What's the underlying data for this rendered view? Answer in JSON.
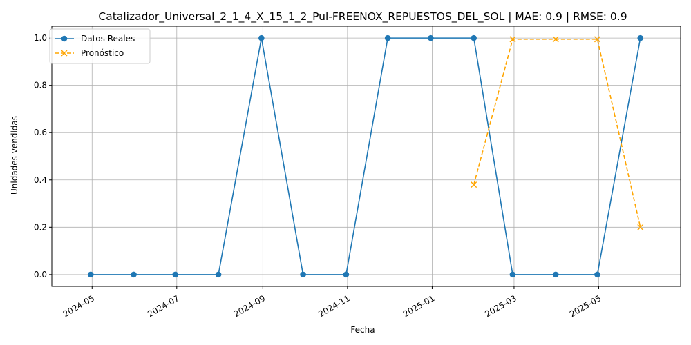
{
  "chart_data": {
    "type": "line",
    "title": "Catalizador_Universal_2_1_4_X_15_1_2_Pul-FREENOX_REPUESTOS_DEL_SOL | MAE: 0.9 | RMSE: 0.9",
    "xlabel": "Fecha",
    "ylabel": "Unidades vendidas",
    "ylim": [
      -0.05,
      1.05
    ],
    "xlim": [
      "2024-04-02",
      "2025-06-29"
    ],
    "grid": true,
    "legend_position": "top-left",
    "x_ticks": [
      "2024-05",
      "2024-07",
      "2024-09",
      "2024-11",
      "2025-01",
      "2025-03",
      "2025-05"
    ],
    "y_ticks": [
      "0.0",
      "0.2",
      "0.4",
      "0.6",
      "0.8",
      "1.0"
    ],
    "y_tick_values": [
      0.0,
      0.2,
      0.4,
      0.6,
      0.8,
      1.0
    ],
    "series": [
      {
        "name": "Datos Reales",
        "color": "#1f77b4",
        "style": "solid",
        "marker": "circle",
        "x": [
          "2024-04-30",
          "2024-05-31",
          "2024-06-30",
          "2024-07-31",
          "2024-08-31",
          "2024-09-30",
          "2024-10-31",
          "2024-11-30",
          "2024-12-31",
          "2025-01-31",
          "2025-02-28",
          "2025-03-31",
          "2025-04-30",
          "2025-05-31"
        ],
        "values": [
          0,
          0,
          0,
          0,
          1,
          0,
          0,
          1,
          1,
          1,
          0,
          0,
          0,
          1
        ]
      },
      {
        "name": "Pronóstico",
        "color": "#ffa500",
        "style": "dashed",
        "marker": "x",
        "x": [
          "2025-01-31",
          "2025-02-28",
          "2025-03-31",
          "2025-04-30",
          "2025-05-31"
        ],
        "values": [
          0.38,
          0.995,
          0.995,
          0.995,
          0.2
        ]
      }
    ]
  }
}
